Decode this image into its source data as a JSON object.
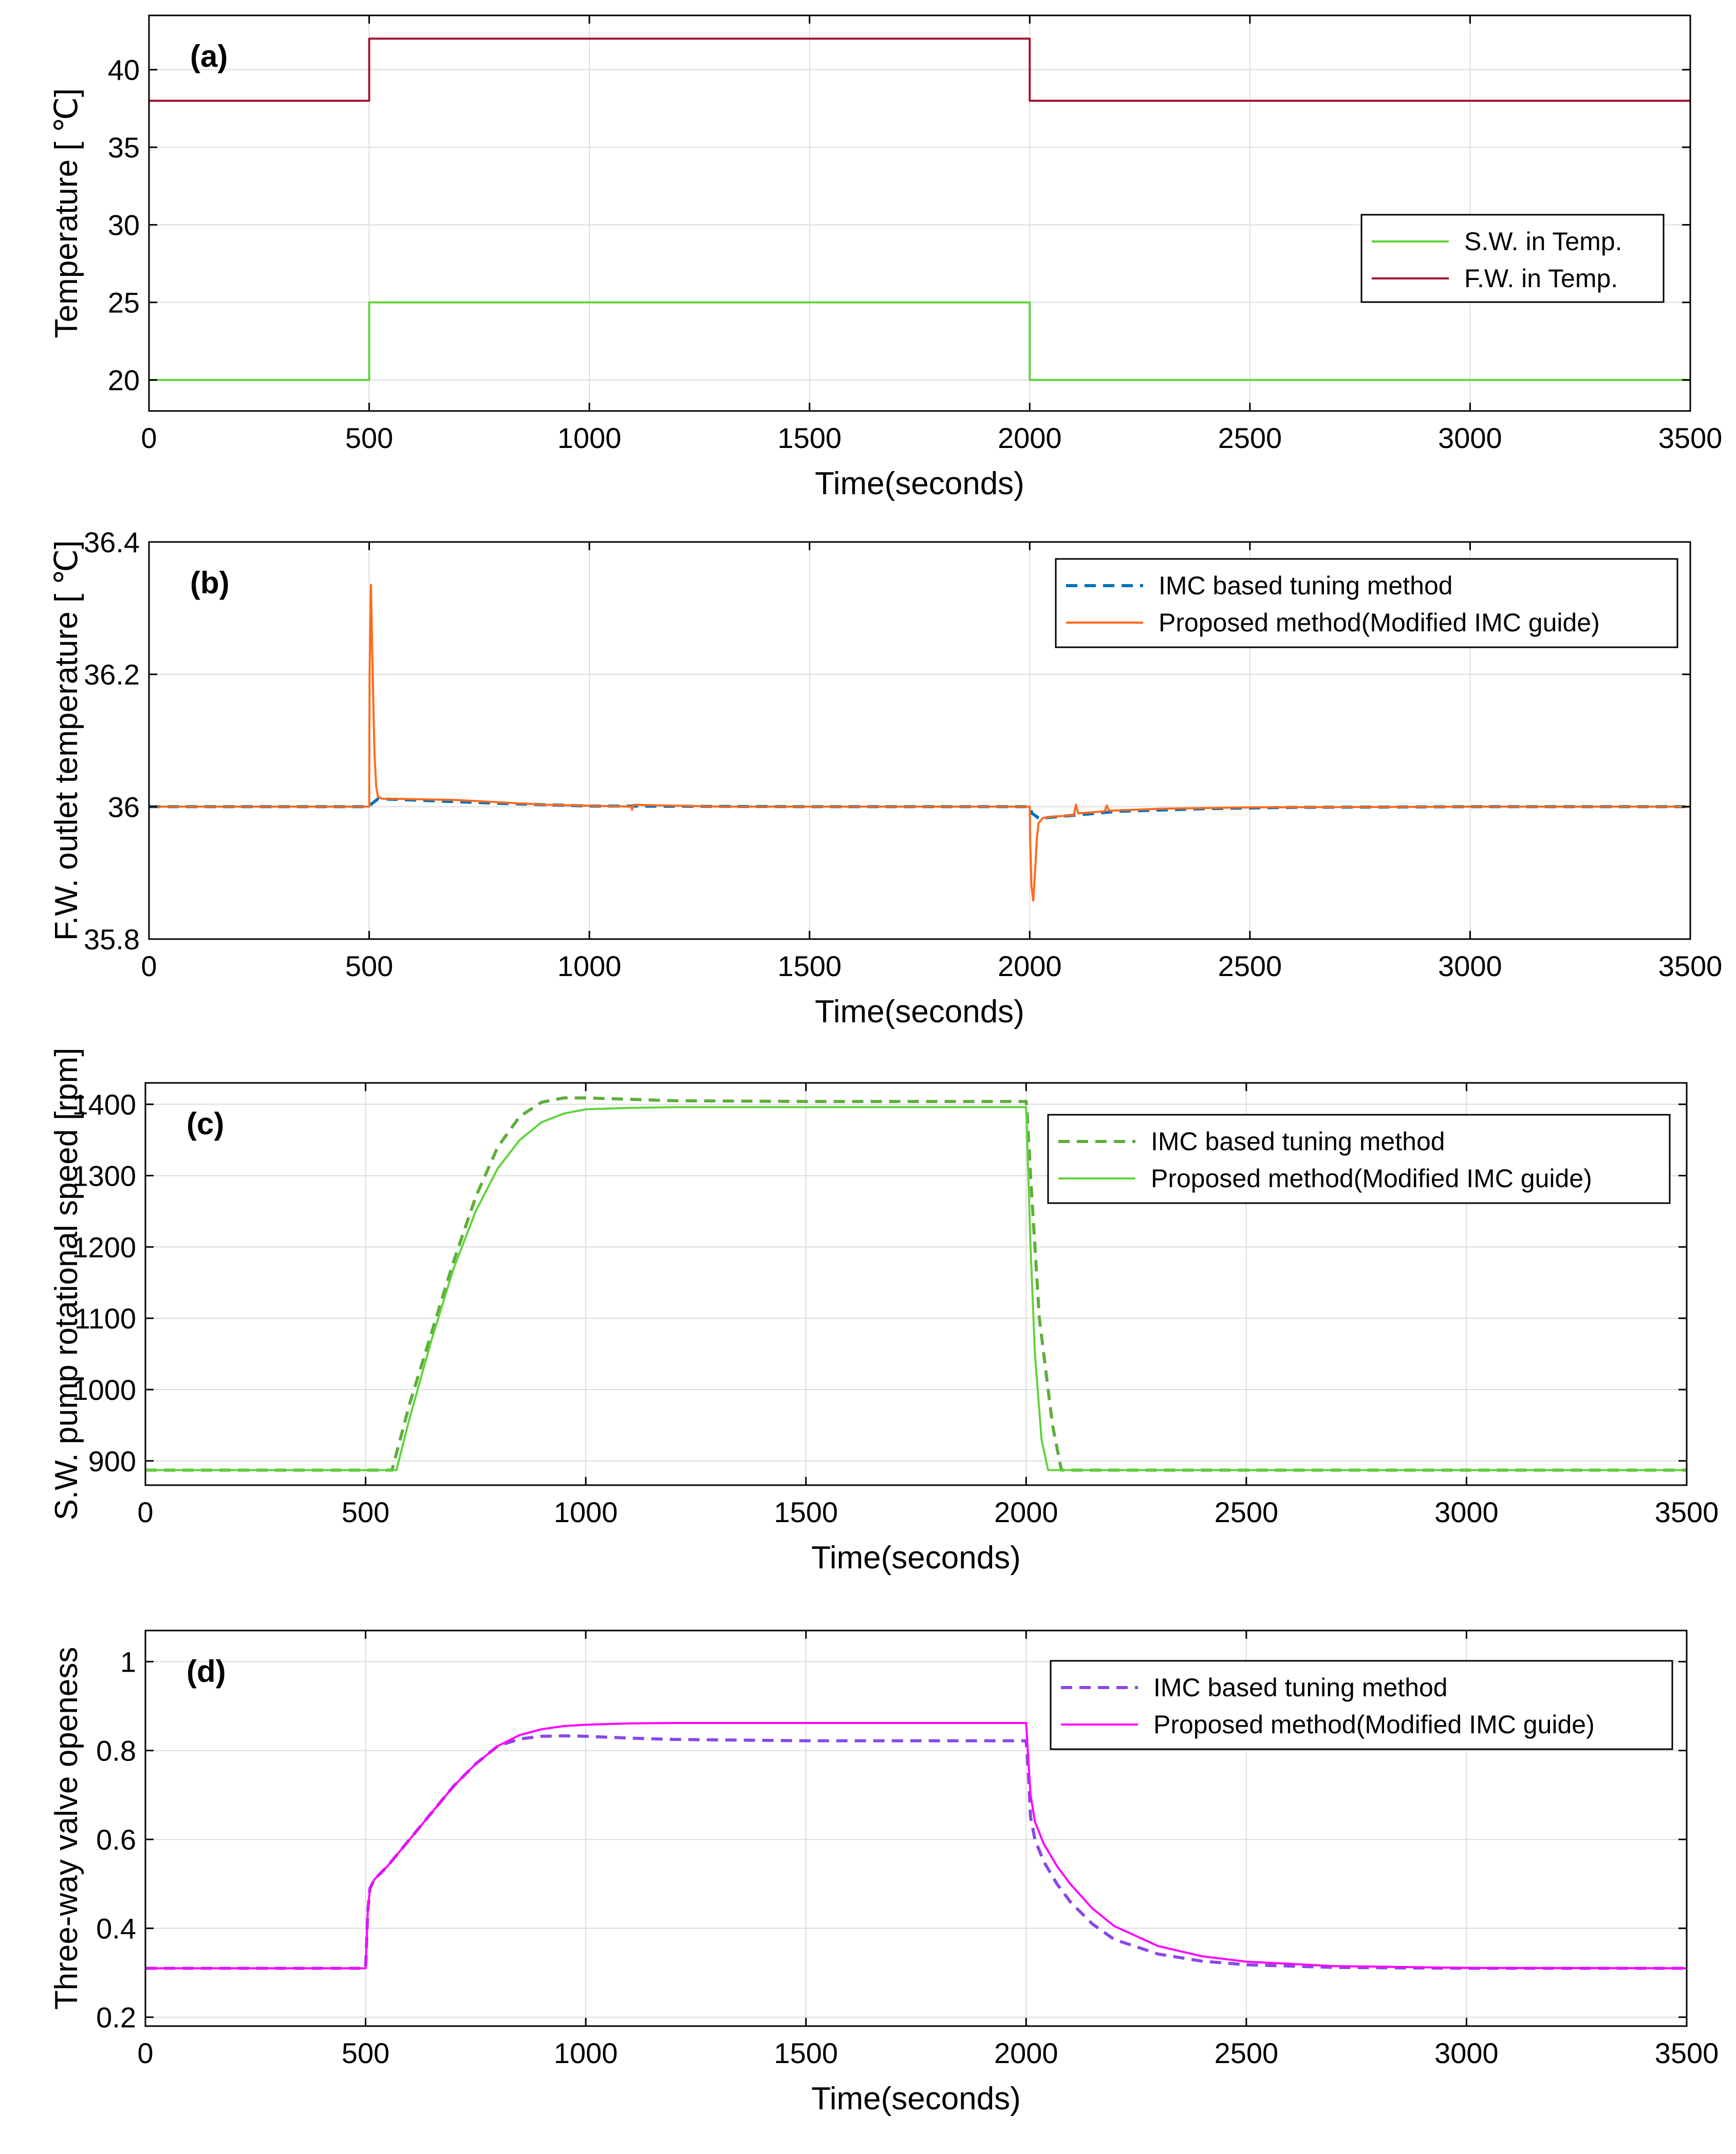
{
  "chart_data": [
    {
      "type": "line",
      "panel": "(a)",
      "xlabel": "Time(seconds)",
      "ylabel": "Temperature [ ℃]",
      "xlim": [
        0,
        3500
      ],
      "ylim": [
        18,
        43.5
      ],
      "xticks": [
        0,
        500,
        1000,
        1500,
        2000,
        2500,
        3000,
        3500
      ],
      "yticks": [
        20,
        25,
        30,
        35,
        40
      ],
      "grid": true,
      "legend_position": "right",
      "series": [
        {
          "name": "S.W. in Temp.",
          "color": "#5fd43a",
          "style": "solid",
          "x": [
            0,
            500,
            500,
            2000,
            2000,
            3500
          ],
          "y": [
            20,
            20,
            25,
            25,
            20,
            20
          ]
        },
        {
          "name": "F.W. in Temp.",
          "color": "#a2142f",
          "style": "solid",
          "x": [
            0,
            500,
            500,
            2000,
            2000,
            3500
          ],
          "y": [
            38,
            38,
            42,
            42,
            38,
            38
          ]
        }
      ]
    },
    {
      "type": "line",
      "panel": "(b)",
      "xlabel": "Time(seconds)",
      "ylabel": "F.W. outlet temperature [ ℃]",
      "xlim": [
        0,
        3500
      ],
      "ylim": [
        35.8,
        36.4
      ],
      "xticks": [
        0,
        500,
        1000,
        1500,
        2000,
        2500,
        3000,
        3500
      ],
      "yticks": [
        35.8,
        36,
        36.2,
        36.4
      ],
      "grid": true,
      "legend_position": "top-right",
      "series": [
        {
          "name": "IMC based tuning method",
          "color": "#0072bd",
          "style": "dashed",
          "x": [
            0,
            500,
            505,
            520,
            600,
            800,
            1000,
            1500,
            2000,
            2005,
            2020,
            2030,
            2100,
            2200,
            2400,
            2600,
            3000,
            3500
          ],
          "y": [
            36,
            36,
            36.004,
            36.012,
            36.01,
            36.005,
            36.001,
            36,
            36,
            35.99,
            35.983,
            35.983,
            35.987,
            35.993,
            35.997,
            35.999,
            36,
            36
          ]
        },
        {
          "name": "Proposed method(Modified IMC guide)",
          "color": "#ff6a1a",
          "style": "solid",
          "x": [
            0,
            500,
            501,
            504,
            508,
            512,
            516,
            520,
            530,
            560,
            700,
            900,
            1095,
            1097,
            1100,
            1300,
            2000,
            2001,
            2004,
            2008,
            2012,
            2016,
            2020,
            2030,
            2050,
            2100,
            2105,
            2110,
            2170,
            2175,
            2180,
            2300,
            2500,
            3000,
            3500
          ],
          "y": [
            36,
            36,
            36.2,
            36.335,
            36.2,
            36.08,
            36.03,
            36.015,
            36.012,
            36.012,
            36.01,
            36.003,
            36,
            35.995,
            36.003,
            36,
            36,
            35.95,
            35.88,
            35.858,
            35.9,
            35.95,
            35.975,
            35.983,
            35.985,
            35.987,
            36.003,
            35.99,
            35.993,
            36.002,
            35.994,
            35.997,
            35.999,
            36,
            36
          ]
        }
      ]
    },
    {
      "type": "line",
      "panel": "(c)",
      "xlabel": "Time(seconds)",
      "ylabel": "S.W. pump rotational speed [rpm]",
      "xlim": [
        0,
        3500
      ],
      "ylim": [
        866,
        1430
      ],
      "xticks": [
        0,
        500,
        1000,
        1500,
        2000,
        2500,
        3000,
        3500
      ],
      "yticks": [
        900,
        1000,
        1100,
        1200,
        1300,
        1400
      ],
      "grid": true,
      "legend_position": "top-right",
      "series": [
        {
          "name": "IMC based tuning method",
          "color": "#5fad3a",
          "style": "dashed",
          "x": [
            0,
            540,
            560,
            600,
            650,
            700,
            750,
            800,
            850,
            900,
            950,
            1000,
            1100,
            1200,
            1500,
            2000,
            2003,
            2010,
            2030,
            2060,
            2080,
            2100,
            3500
          ],
          "y": [
            887,
            887,
            887,
            980,
            1080,
            1180,
            1270,
            1340,
            1383,
            1403,
            1409,
            1409,
            1407,
            1405,
            1404,
            1404,
            1380,
            1300,
            1100,
            950,
            887,
            887,
            887
          ]
        },
        {
          "name": "Proposed method(Modified IMC guide)",
          "color": "#5fd43a",
          "style": "solid",
          "x": [
            0,
            550,
            570,
            600,
            650,
            700,
            750,
            800,
            850,
            900,
            950,
            1000,
            1100,
            1200,
            1500,
            2000,
            2005,
            2010,
            2020,
            2035,
            2050,
            3500
          ],
          "y": [
            887,
            887,
            887,
            960,
            1070,
            1170,
            1250,
            1310,
            1350,
            1375,
            1387,
            1393,
            1395,
            1396,
            1396,
            1396,
            1300,
            1200,
            1050,
            930,
            887,
            887
          ]
        }
      ]
    },
    {
      "type": "line",
      "panel": "(d)",
      "xlabel": "Time(seconds)",
      "ylabel": "Three-way valve openess",
      "xlim": [
        0,
        3500
      ],
      "ylim": [
        0.18,
        1.07
      ],
      "xticks": [
        0,
        500,
        1000,
        1500,
        2000,
        2500,
        3000,
        3500
      ],
      "yticks": [
        0.2,
        0.4,
        0.6,
        0.8,
        1
      ],
      "grid": true,
      "legend_position": "top-right",
      "series": [
        {
          "name": "IMC based tuning method",
          "color": "#8a47e8",
          "style": "dashed",
          "x": [
            0,
            500,
            505,
            510,
            520,
            550,
            600,
            650,
            700,
            750,
            800,
            850,
            900,
            950,
            1000,
            1100,
            1200,
            1500,
            2000,
            2005,
            2010,
            2020,
            2040,
            2070,
            2100,
            2150,
            2200,
            2300,
            2400,
            2500,
            2700,
            3000,
            3500
          ],
          "y": [
            0.31,
            0.31,
            0.44,
            0.49,
            0.51,
            0.54,
            0.6,
            0.66,
            0.72,
            0.77,
            0.81,
            0.826,
            0.832,
            0.833,
            0.832,
            0.828,
            0.825,
            0.822,
            0.822,
            0.75,
            0.65,
            0.6,
            0.55,
            0.5,
            0.46,
            0.41,
            0.375,
            0.342,
            0.326,
            0.318,
            0.312,
            0.31,
            0.31
          ]
        },
        {
          "name": "Proposed method(Modified IMC guide)",
          "color": "#ff00ff",
          "style": "solid",
          "x": [
            0,
            500,
            505,
            510,
            520,
            550,
            600,
            650,
            700,
            750,
            800,
            850,
            900,
            950,
            1000,
            1100,
            1200,
            1500,
            2000,
            2005,
            2010,
            2020,
            2040,
            2070,
            2100,
            2150,
            2200,
            2300,
            2400,
            2500,
            2700,
            3000,
            3500
          ],
          "y": [
            0.31,
            0.31,
            0.44,
            0.49,
            0.51,
            0.54,
            0.6,
            0.66,
            0.72,
            0.77,
            0.81,
            0.835,
            0.848,
            0.855,
            0.858,
            0.861,
            0.862,
            0.862,
            0.862,
            0.78,
            0.7,
            0.64,
            0.59,
            0.54,
            0.5,
            0.445,
            0.405,
            0.36,
            0.337,
            0.325,
            0.315,
            0.311,
            0.31
          ]
        }
      ]
    }
  ]
}
